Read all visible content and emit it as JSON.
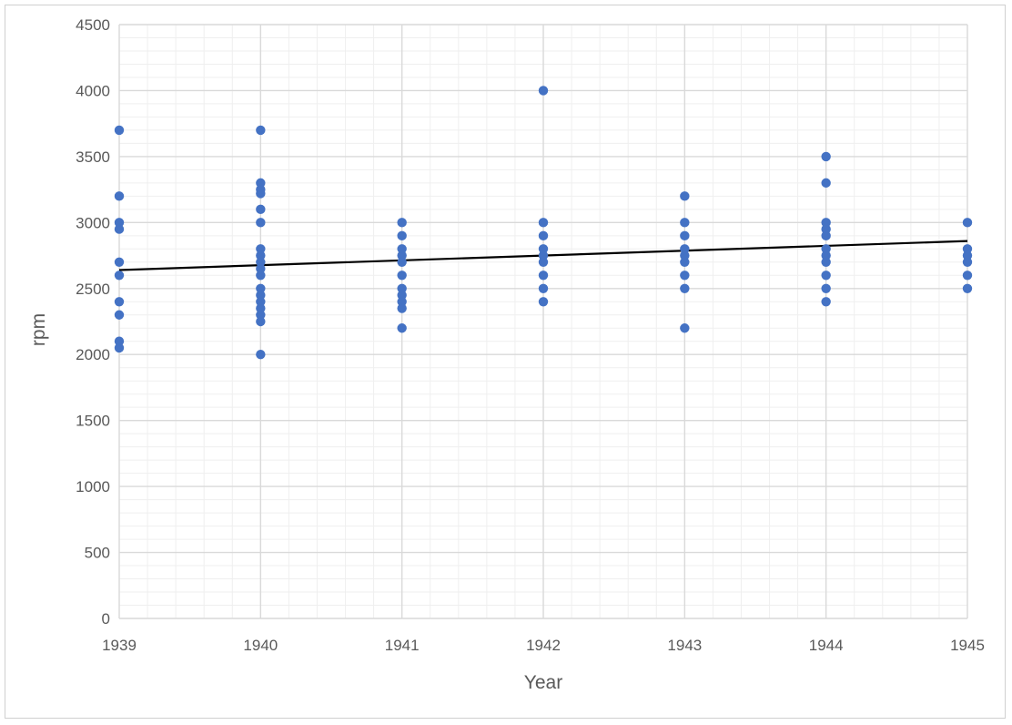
{
  "chart_data": {
    "type": "scatter",
    "title": "",
    "xlabel": "Year",
    "ylabel": "rpm",
    "xlim": [
      1939,
      1945
    ],
    "ylim": [
      0,
      4500
    ],
    "x_ticks": [
      "1939",
      "1940",
      "1941",
      "1942",
      "1943",
      "1944",
      "1945"
    ],
    "y_ticks": [
      "0",
      "500",
      "1000",
      "1500",
      "2000",
      "2500",
      "3000",
      "3500",
      "4000",
      "4500"
    ],
    "grid": true,
    "legend": "none",
    "colors": {
      "points": "#4472c4",
      "trendline": "#000000",
      "grid_major": "#d9d9d9",
      "grid_minor": "#efefef",
      "text": "#595959"
    },
    "series": [
      {
        "points": [
          [
            1939,
            3700
          ],
          [
            1939,
            3200
          ],
          [
            1939,
            3000
          ],
          [
            1939,
            2950
          ],
          [
            1939,
            2700
          ],
          [
            1939,
            2600
          ],
          [
            1939,
            2400
          ],
          [
            1939,
            2300
          ],
          [
            1939,
            2100
          ],
          [
            1939,
            2050
          ],
          [
            1940,
            3700
          ],
          [
            1940,
            3300
          ],
          [
            1940,
            3250
          ],
          [
            1940,
            3220
          ],
          [
            1940,
            3100
          ],
          [
            1940,
            3000
          ],
          [
            1940,
            2800
          ],
          [
            1940,
            2750
          ],
          [
            1940,
            2700
          ],
          [
            1940,
            2650
          ],
          [
            1940,
            2600
          ],
          [
            1940,
            2500
          ],
          [
            1940,
            2450
          ],
          [
            1940,
            2400
          ],
          [
            1940,
            2350
          ],
          [
            1940,
            2300
          ],
          [
            1940,
            2250
          ],
          [
            1940,
            2000
          ],
          [
            1941,
            3000
          ],
          [
            1941,
            2900
          ],
          [
            1941,
            2800
          ],
          [
            1941,
            2750
          ],
          [
            1941,
            2700
          ],
          [
            1941,
            2600
          ],
          [
            1941,
            2500
          ],
          [
            1941,
            2450
          ],
          [
            1941,
            2400
          ],
          [
            1941,
            2350
          ],
          [
            1941,
            2200
          ],
          [
            1942,
            4000
          ],
          [
            1942,
            3000
          ],
          [
            1942,
            2900
          ],
          [
            1942,
            2800
          ],
          [
            1942,
            2750
          ],
          [
            1942,
            2700
          ],
          [
            1942,
            2600
          ],
          [
            1942,
            2500
          ],
          [
            1942,
            2400
          ],
          [
            1943,
            3200
          ],
          [
            1943,
            3000
          ],
          [
            1943,
            2900
          ],
          [
            1943,
            2800
          ],
          [
            1943,
            2750
          ],
          [
            1943,
            2700
          ],
          [
            1943,
            2600
          ],
          [
            1943,
            2500
          ],
          [
            1943,
            2200
          ],
          [
            1944,
            3500
          ],
          [
            1944,
            3300
          ],
          [
            1944,
            3000
          ],
          [
            1944,
            2950
          ],
          [
            1944,
            2900
          ],
          [
            1944,
            2800
          ],
          [
            1944,
            2750
          ],
          [
            1944,
            2700
          ],
          [
            1944,
            2600
          ],
          [
            1944,
            2500
          ],
          [
            1944,
            2400
          ],
          [
            1945,
            3000
          ],
          [
            1945,
            2800
          ],
          [
            1945,
            2750
          ],
          [
            1945,
            2700
          ],
          [
            1945,
            2600
          ],
          [
            1945,
            2500
          ]
        ]
      }
    ],
    "trendline": {
      "x": [
        1939,
        1945
      ],
      "y": [
        2640,
        2860
      ]
    }
  }
}
